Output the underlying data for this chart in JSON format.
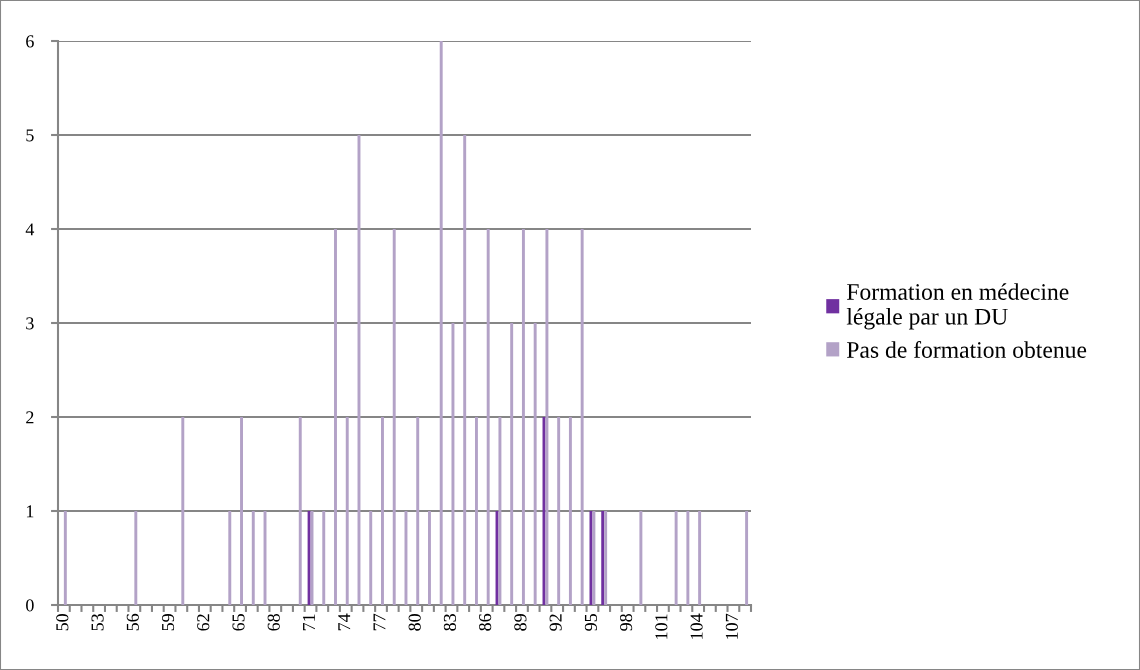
{
  "chart_data": {
    "type": "bar",
    "categories": [
      "50",
      null,
      null,
      "53",
      null,
      null,
      "56",
      null,
      null,
      "59",
      null,
      null,
      "62",
      null,
      null,
      "65",
      null,
      null,
      "68",
      null,
      null,
      "71",
      null,
      null,
      "74",
      null,
      null,
      "77",
      null,
      null,
      "80",
      null,
      null,
      "83",
      null,
      null,
      "86",
      null,
      null,
      "89",
      null,
      null,
      "92",
      null,
      null,
      "95",
      null,
      null,
      "98",
      null,
      null,
      "101",
      null,
      null,
      "104",
      null,
      null,
      "107",
      null
    ],
    "series": [
      {
        "name": "Formation en médecine légale par un DU",
        "color": "#7030a0",
        "values": [
          0,
          0,
          0,
          0,
          0,
          0,
          0,
          0,
          0,
          0,
          0,
          0,
          0,
          0,
          0,
          0,
          0,
          0,
          0,
          0,
          0,
          1,
          0,
          0,
          0,
          0,
          0,
          0,
          0,
          0,
          0,
          0,
          0,
          0,
          0,
          0,
          0,
          1,
          0,
          0,
          0,
          2,
          0,
          0,
          0,
          1,
          1,
          0,
          0,
          0,
          0,
          0,
          0,
          0,
          0,
          0,
          0,
          0,
          0
        ]
      },
      {
        "name": "Pas de formation obtenue",
        "color": "#b3a2c7",
        "values": [
          1,
          0,
          0,
          0,
          0,
          0,
          1,
          0,
          0,
          0,
          2,
          0,
          0,
          0,
          1,
          2,
          1,
          1,
          0,
          0,
          2,
          1,
          1,
          4,
          2,
          5,
          1,
          2,
          4,
          1,
          2,
          1,
          6,
          3,
          5,
          2,
          4,
          2,
          3,
          4,
          3,
          4,
          2,
          2,
          4,
          1,
          1,
          0,
          0,
          1,
          0,
          0,
          1,
          1,
          1,
          0,
          0,
          0,
          1
        ]
      }
    ],
    "ylim": [
      0,
      6
    ],
    "yticks": [
      0,
      1,
      2,
      3,
      4,
      5,
      6
    ],
    "grid": "y",
    "legend": "right"
  }
}
